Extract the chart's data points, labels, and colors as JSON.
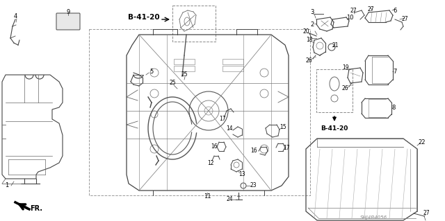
{
  "bg_color": "#ffffff",
  "diagram_code": "SHJ4B4056",
  "line_color": "#444444",
  "light_line": "#888888",
  "label_color": "#000000",
  "b4120_color": "#000000",
  "figsize": [
    6.4,
    3.19
  ],
  "dpi": 100,
  "xlim": [
    0,
    640
  ],
  "ylim": [
    319,
    0
  ]
}
